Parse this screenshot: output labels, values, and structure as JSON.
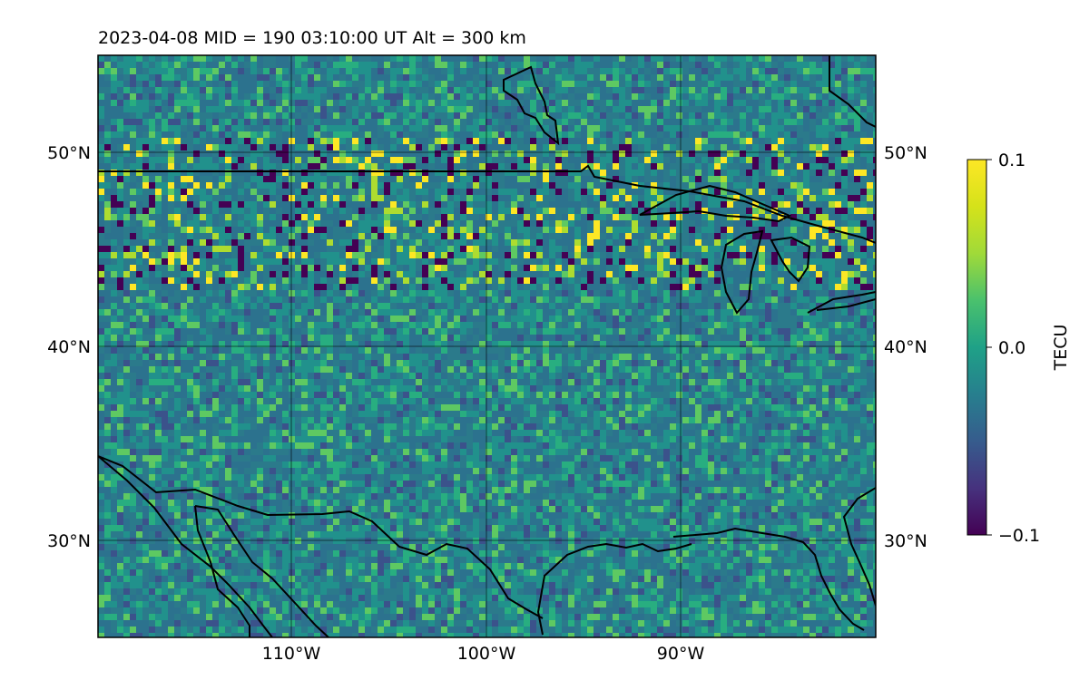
{
  "title": "2023-04-08  MID = 190    03:10:00  UT  Alt = 300 km",
  "map": {
    "lat_ticks": [
      "50°N",
      "40°N",
      "30°N"
    ],
    "lon_ticks": [
      "110°W",
      "100°W",
      "90°W"
    ],
    "lat_range": [
      25,
      55
    ],
    "lon_range": [
      -120,
      -80
    ],
    "grid": true,
    "colormap": "viridis"
  },
  "colorbar": {
    "label": "TECU",
    "ticks": [
      "0.1",
      "0.0",
      "−0.1"
    ],
    "vmin": -0.1,
    "vmax": 0.1
  }
}
